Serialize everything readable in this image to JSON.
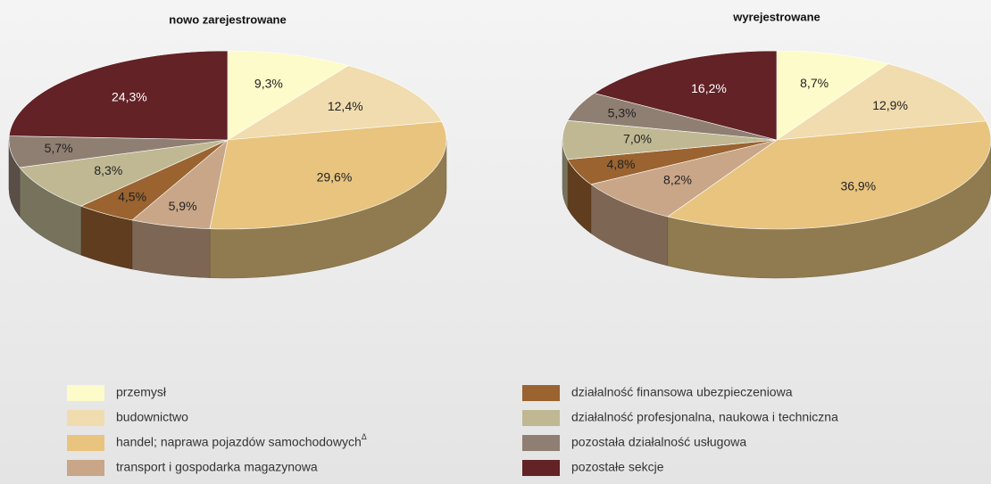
{
  "chart_data": [
    {
      "type": "pie3d",
      "title": "nowo zarejestrowane",
      "values": [
        9.3,
        12.4,
        29.6,
        5.9,
        4.5,
        8.3,
        5.7,
        24.3
      ],
      "value_labels": [
        "9,3%",
        "12,4%",
        "29,6%",
        "5,9%",
        "4,5%",
        "8,3%",
        "5,7%",
        "24,3%"
      ]
    },
    {
      "type": "pie3d",
      "title": "wyrejestrowane",
      "values": [
        8.7,
        12.9,
        36.9,
        8.2,
        4.8,
        7.0,
        5.3,
        16.2
      ],
      "value_labels": [
        "8,7%",
        "12,9%",
        "36,9%",
        "8,2%",
        "4,8%",
        "7,0%",
        "5,3%",
        "16,2%"
      ]
    }
  ],
  "legend": [
    {
      "name": "przemysł",
      "color": "#fdfbc9"
    },
    {
      "name": "budownictwo",
      "color": "#f0dcae"
    },
    {
      "name": "handel; naprawa pojazdów samochodowych",
      "superscript": "Δ",
      "color": "#e8c47f"
    },
    {
      "name": "transport i gospodarka magazynowa",
      "color": "#c9a688"
    },
    {
      "name": "działalność finansowa ubezpieczeniowa",
      "color": "#9a6330"
    },
    {
      "name": "działalność profesjonalna, naukowa i techniczna",
      "color": "#bfb893"
    },
    {
      "name": "pozostała działalność usługowa",
      "color": "#8f7f72"
    },
    {
      "name": "pozostałe sekcje",
      "color": "#622226"
    }
  ]
}
